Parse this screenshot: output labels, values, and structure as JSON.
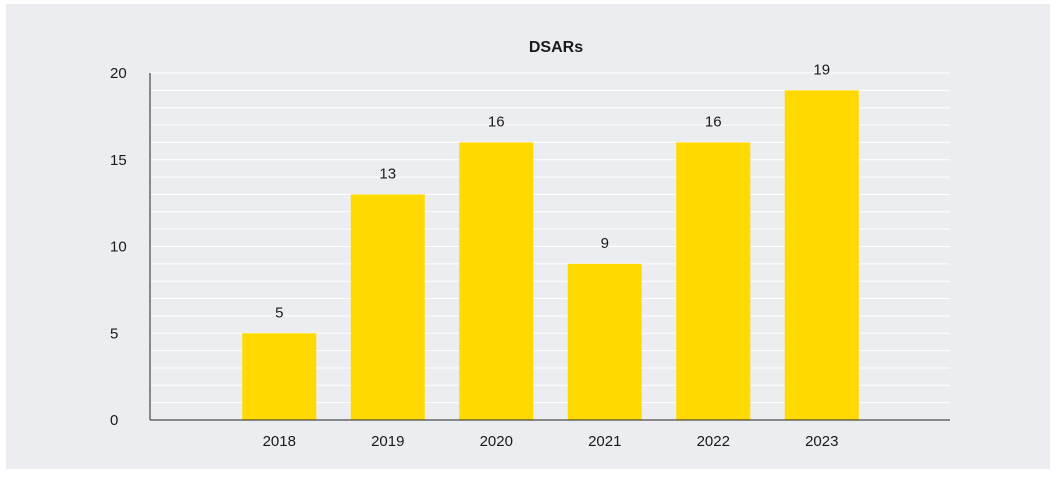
{
  "chart_data": {
    "type": "bar",
    "title": "DSARs",
    "categories": [
      "2018",
      "2019",
      "2020",
      "2021",
      "2022",
      "2023"
    ],
    "values": [
      5,
      13,
      16,
      9,
      16,
      19
    ],
    "data_labels": [
      "5",
      "13",
      "16",
      "9",
      "16",
      "19"
    ],
    "y_ticks": [
      "0",
      "5",
      "10",
      "15",
      "20"
    ],
    "ylim": [
      0,
      20
    ],
    "grid": true,
    "bar_color": "#ffd900",
    "background_color": "#ecedf0"
  }
}
